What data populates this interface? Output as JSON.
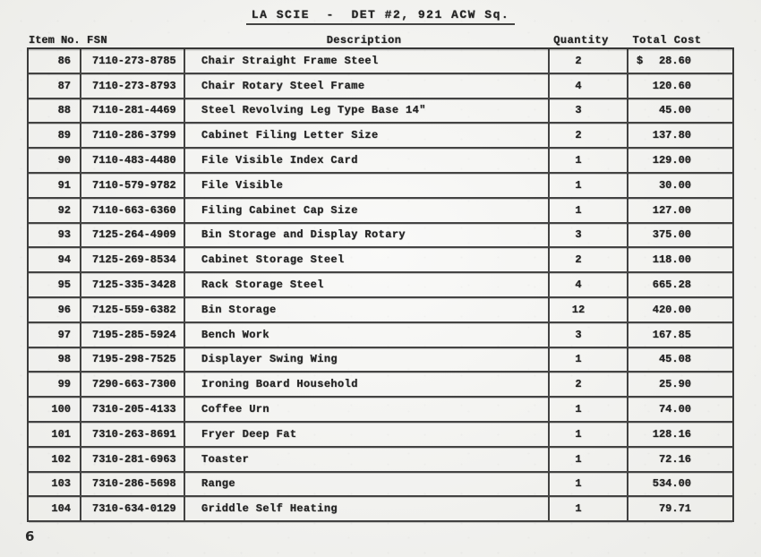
{
  "document": {
    "title": "LA SCIE  -  DET #2, 921 ACW Sq.",
    "page_number": "6",
    "table": {
      "headers": {
        "item_no": "Item No.",
        "fsn": "FSN",
        "description": "Description",
        "quantity": "Quantity",
        "total_cost": "Total Cost"
      },
      "currency_symbol": "$",
      "rows": [
        {
          "item_no": "86",
          "fsn": "7110-273-8785",
          "description": "Chair Straight Frame Steel",
          "quantity": "2",
          "total_cost": "28.60",
          "show_currency": true
        },
        {
          "item_no": "87",
          "fsn": "7110-273-8793",
          "description": "Chair Rotary Steel Frame",
          "quantity": "4",
          "total_cost": "120.60",
          "show_currency": false
        },
        {
          "item_no": "88",
          "fsn": "7110-281-4469",
          "description": "Steel Revolving Leg Type Base 14\"",
          "quantity": "3",
          "total_cost": "45.00",
          "show_currency": false
        },
        {
          "item_no": "89",
          "fsn": "7110-286-3799",
          "description": "Cabinet Filing Letter Size",
          "quantity": "2",
          "total_cost": "137.80",
          "show_currency": false
        },
        {
          "item_no": "90",
          "fsn": "7110-483-4480",
          "description": "File Visible Index Card",
          "quantity": "1",
          "total_cost": "129.00",
          "show_currency": false
        },
        {
          "item_no": "91",
          "fsn": "7110-579-9782",
          "description": "File Visible",
          "quantity": "1",
          "total_cost": "30.00",
          "show_currency": false
        },
        {
          "item_no": "92",
          "fsn": "7110-663-6360",
          "description": "Filing Cabinet Cap Size",
          "quantity": "1",
          "total_cost": "127.00",
          "show_currency": false
        },
        {
          "item_no": "93",
          "fsn": "7125-264-4909",
          "description": "Bin Storage and Display Rotary",
          "quantity": "3",
          "total_cost": "375.00",
          "show_currency": false
        },
        {
          "item_no": "94",
          "fsn": "7125-269-8534",
          "description": "Cabinet Storage Steel",
          "quantity": "2",
          "total_cost": "118.00",
          "show_currency": false
        },
        {
          "item_no": "95",
          "fsn": "7125-335-3428",
          "description": "Rack Storage Steel",
          "quantity": "4",
          "total_cost": "665.28",
          "show_currency": false
        },
        {
          "item_no": "96",
          "fsn": "7125-559-6382",
          "description": "Bin Storage",
          "quantity": "12",
          "total_cost": "420.00",
          "show_currency": false
        },
        {
          "item_no": "97",
          "fsn": "7195-285-5924",
          "description": "Bench Work",
          "quantity": "3",
          "total_cost": "167.85",
          "show_currency": false
        },
        {
          "item_no": "98",
          "fsn": "7195-298-7525",
          "description": "Displayer Swing Wing",
          "quantity": "1",
          "total_cost": "45.08",
          "show_currency": false
        },
        {
          "item_no": "99",
          "fsn": "7290-663-7300",
          "description": "Ironing Board Household",
          "quantity": "2",
          "total_cost": "25.90",
          "show_currency": false
        },
        {
          "item_no": "100",
          "fsn": "7310-205-4133",
          "description": "Coffee Urn",
          "quantity": "1",
          "total_cost": "74.00",
          "show_currency": false
        },
        {
          "item_no": "101",
          "fsn": "7310-263-8691",
          "description": "Fryer Deep Fat",
          "quantity": "1",
          "total_cost": "128.16",
          "show_currency": false
        },
        {
          "item_no": "102",
          "fsn": "7310-281-6963",
          "description": "Toaster",
          "quantity": "1",
          "total_cost": "72.16",
          "show_currency": false
        },
        {
          "item_no": "103",
          "fsn": "7310-286-5698",
          "description": "Range",
          "quantity": "1",
          "total_cost": "534.00",
          "show_currency": false
        },
        {
          "item_no": "104",
          "fsn": "7310-634-0129",
          "description": "Griddle Self Heating",
          "quantity": "1",
          "total_cost": "79.71",
          "show_currency": false
        }
      ]
    }
  }
}
